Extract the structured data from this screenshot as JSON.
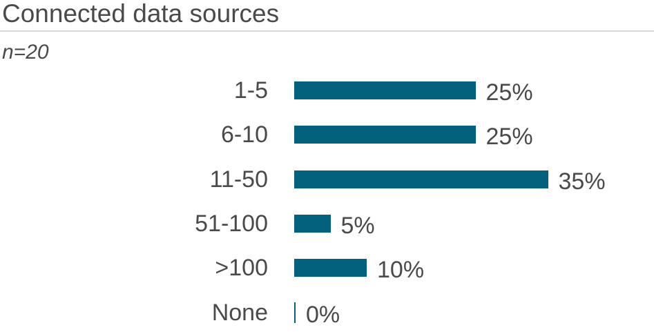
{
  "header": {
    "title": "Connected data sources",
    "sample_size": "n=20"
  },
  "colors": {
    "bar": "#04617e",
    "text": "#4a4a4a",
    "divider": "#d9d9d9",
    "background": "#ffffff"
  },
  "chart_data": {
    "type": "bar",
    "orientation": "horizontal",
    "title": "Connected data sources",
    "subtitle": "n=20",
    "categories": [
      "1-5",
      "6-10",
      "11-50",
      "51-100",
      ">100",
      "None"
    ],
    "values": [
      25,
      25,
      35,
      5,
      10,
      0
    ],
    "value_labels": [
      "25%",
      "25%",
      "35%",
      "5%",
      "10%",
      "0%"
    ],
    "unit": "%",
    "xlim": [
      0,
      40
    ],
    "grid": false,
    "legend": false,
    "data_labels_position": "outside-end"
  }
}
